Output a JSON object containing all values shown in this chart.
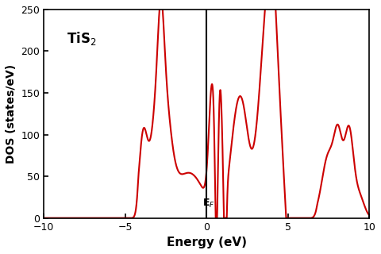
{
  "xlabel": "Energy (eV)",
  "ylabel": "DOS (states/eV)",
  "xlim": [
    -10,
    10
  ],
  "ylim": [
    0,
    250
  ],
  "line_color": "#cc0000",
  "vline_x": 0,
  "ef_label": "E$_F$",
  "xticks": [
    -10,
    -5,
    0,
    5,
    10
  ],
  "yticks": [
    0,
    50,
    100,
    150,
    200,
    250
  ],
  "background_color": "#ffffff",
  "title_text": "TiS",
  "title_sub": "2"
}
